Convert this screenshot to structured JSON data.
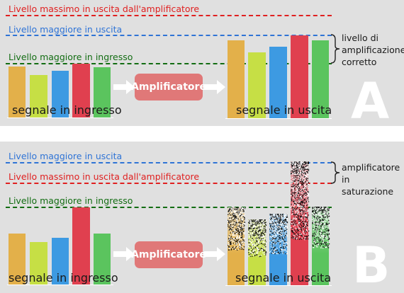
{
  "panel_a": {
    "label_max_output": "Livello massimo in uscita dall'amplificatore",
    "label_max_out_level": "Livello maggiore in uscita",
    "label_max_in_level": "Livello maggiore in ingresso",
    "input_caption": "segnale in ingresso",
    "output_caption": "segnale in uscita",
    "amp_label": "Amplificatore",
    "note_lines": [
      "livello di",
      "amplificazione",
      "corretto"
    ],
    "letter": "A"
  },
  "panel_b": {
    "label_max_out_level": "Livello maggiore in uscita",
    "label_max_output": "Livello massimo in uscita dall'amplificatore",
    "label_max_in_level": "Livello maggiore in ingresso",
    "input_caption": "segnale in ingresso",
    "output_caption": "segnale in uscita",
    "amp_label": "Amplificatore",
    "note_lines": [
      "amplificatore",
      "in saturazione"
    ],
    "letter": "B"
  },
  "colors": {
    "orange": "#e3b04a",
    "yellow_green": "#c6df45",
    "blue": "#3d9ae2",
    "red": "#e0404f",
    "green": "#5bc45e",
    "dash_red": "#e02020",
    "dash_blue": "#2f74d6",
    "dash_green": "#136d13",
    "amp_box": "#e07878"
  }
}
